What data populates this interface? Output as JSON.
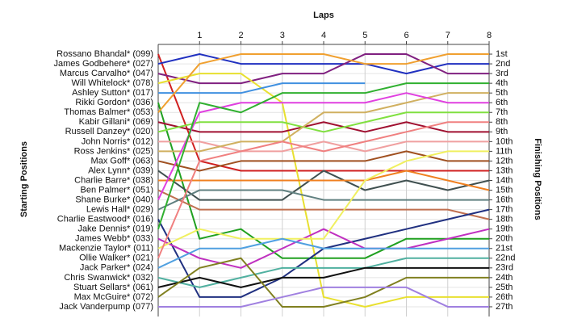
{
  "chart_data": {
    "type": "line",
    "xlabel": "Laps",
    "ylabel": "Starting Positions",
    "y2label": "Finishing Positions",
    "x": [
      0,
      1,
      2,
      3,
      4,
      5,
      6,
      7,
      8
    ],
    "xlim": [
      0,
      8
    ],
    "xticks": [
      1,
      2,
      3,
      4,
      5,
      6,
      7,
      8
    ],
    "ylim": [
      28,
      0
    ],
    "y2lim": [
      28,
      0
    ],
    "y2ticks": [
      {
        "value": 1,
        "label": "1st"
      },
      {
        "value": 2,
        "label": "2nd"
      },
      {
        "value": 3,
        "label": "3rd"
      },
      {
        "value": 4,
        "label": "4th"
      },
      {
        "value": 5,
        "label": "5th"
      },
      {
        "value": 6,
        "label": "6th"
      },
      {
        "value": 7,
        "label": "7th"
      },
      {
        "value": 8,
        "label": "8th"
      },
      {
        "value": 9,
        "label": "9th"
      },
      {
        "value": 10,
        "label": "10th"
      },
      {
        "value": 11,
        "label": "11th"
      },
      {
        "value": 12,
        "label": "12th"
      },
      {
        "value": 13,
        "label": "13th"
      },
      {
        "value": 14,
        "label": "14th"
      },
      {
        "value": 15,
        "label": "15th"
      },
      {
        "value": 16,
        "label": "16th"
      },
      {
        "value": 17,
        "label": "17th"
      },
      {
        "value": 18,
        "label": "18th"
      },
      {
        "value": 19,
        "label": "19th"
      },
      {
        "value": 20,
        "label": "20th"
      },
      {
        "value": 21,
        "label": "21st"
      },
      {
        "value": 22,
        "label": "22nd"
      },
      {
        "value": 23,
        "label": "23rd"
      },
      {
        "value": 24,
        "label": "24th"
      },
      {
        "value": 25,
        "label": "25th"
      },
      {
        "value": 26,
        "label": "26th"
      },
      {
        "value": 27,
        "label": "27th"
      }
    ],
    "grid": true,
    "series": [
      {
        "name": "Rossano Bhandal* (099)",
        "color": "#d02020",
        "values": [
          1,
          12,
          13,
          13,
          13,
          13,
          13,
          13,
          13
        ]
      },
      {
        "name": "James Godbehere* (027)",
        "color": "#2030c0",
        "values": [
          2,
          1,
          2,
          2,
          2,
          2,
          3,
          2,
          2
        ]
      },
      {
        "name": "Marcus Carvalho* (047)",
        "color": "#802080",
        "values": [
          3,
          4,
          4,
          3,
          3,
          1,
          1,
          3,
          3
        ]
      },
      {
        "name": "Will Whitelock* (078)",
        "color": "#e8e030",
        "values": [
          4,
          3,
          3,
          6,
          26,
          27,
          26,
          26,
          26
        ]
      },
      {
        "name": "Ashley Sutton* (017)",
        "color": "#4090e0",
        "values": [
          5,
          5,
          5,
          4,
          4,
          4,
          null,
          null,
          null
        ]
      },
      {
        "name": "Rikki Gordon* (036)",
        "color": "#20a020",
        "values": [
          6,
          20,
          19,
          22,
          22,
          22,
          20,
          20,
          20
        ]
      },
      {
        "name": "Thomas Balmer* (053)",
        "color": "#f0a030",
        "values": [
          7,
          2,
          1,
          1,
          1,
          2,
          2,
          1,
          1
        ]
      },
      {
        "name": "Kabir Gillani* (069)",
        "color": "#a01030",
        "values": [
          8,
          9,
          9,
          9,
          8,
          9,
          8,
          9,
          9
        ]
      },
      {
        "name": "Russell Danzey* (020)",
        "color": "#80e040",
        "values": [
          9,
          8,
          8,
          8,
          9,
          8,
          7,
          7,
          7
        ]
      },
      {
        "name": "John Norris* (012)",
        "color": "#f0a0a0",
        "values": [
          10,
          10,
          11,
          11,
          10,
          11,
          10,
          10,
          10
        ]
      },
      {
        "name": "Ross Jenkins* (025)",
        "color": "#d0b060",
        "values": [
          11,
          11,
          10,
          10,
          7,
          7,
          6,
          5,
          5
        ]
      },
      {
        "name": "Max Goff* (063)",
        "color": "#a05020",
        "values": [
          12,
          13,
          12,
          12,
          12,
          12,
          11,
          12,
          12
        ]
      },
      {
        "name": "Alex Lynn* (039)",
        "color": "#405050",
        "values": [
          13,
          16,
          16,
          16,
          13,
          15,
          14,
          15,
          14
        ]
      },
      {
        "name": "Charlie Barre* (038)",
        "color": "#f08020",
        "values": [
          14,
          14,
          14,
          14,
          14,
          14,
          13,
          14,
          15
        ]
      },
      {
        "name": "Ben Palmer* (051)",
        "color": "#c07050",
        "values": [
          15,
          17,
          17,
          17,
          17,
          17,
          17,
          17,
          18
        ]
      },
      {
        "name": "Shane Burke* (040)",
        "color": "#e040e0",
        "values": [
          16,
          7,
          6,
          6,
          6,
          6,
          5,
          6,
          6
        ]
      },
      {
        "name": "Lewis Hall* (029)",
        "color": "#608080",
        "values": [
          17,
          15,
          15,
          15,
          16,
          16,
          16,
          16,
          16
        ]
      },
      {
        "name": "Charlie Eastwood* (016)",
        "color": "#203080",
        "values": [
          18,
          26,
          26,
          24,
          21,
          20,
          19,
          18,
          17
        ]
      },
      {
        "name": "Jake Dennis* (019)",
        "color": "#30b030",
        "values": [
          19,
          6,
          7,
          5,
          5,
          5,
          4,
          4,
          4
        ]
      },
      {
        "name": "James Webb* (033)",
        "color": "#c030c0",
        "values": [
          20,
          22,
          23,
          21,
          19,
          21,
          21,
          20,
          19
        ]
      },
      {
        "name": "Mackenzie Taylor* (011)",
        "color": "#f0f060",
        "values": [
          21,
          19,
          20,
          20,
          20,
          14,
          12,
          11,
          11
        ]
      },
      {
        "name": "Ollie Walker* (021)",
        "color": "#f08080",
        "values": [
          22,
          12,
          11,
          10,
          11,
          10,
          9,
          8,
          8
        ]
      },
      {
        "name": "Jack Parker* (024)",
        "color": "#50a0e0",
        "values": [
          23,
          21,
          21,
          20,
          21,
          21,
          21,
          21,
          21
        ]
      },
      {
        "name": "Chris Swanwick* (032)",
        "color": "#50b0a0",
        "values": [
          24,
          25,
          24,
          23,
          23,
          23,
          22,
          22,
          22
        ]
      },
      {
        "name": "Stuart Sellars* (061)",
        "color": "#101010",
        "values": [
          25,
          24,
          25,
          24,
          24,
          23,
          23,
          23,
          23
        ]
      },
      {
        "name": "Max McGuire* (072)",
        "color": "#808020",
        "values": [
          26,
          23,
          22,
          27,
          27,
          26,
          24,
          24,
          24
        ]
      },
      {
        "name": "Jack Vanderpump (077)",
        "color": "#a080e0",
        "values": [
          27,
          27,
          27,
          26,
          25,
          25,
          25,
          27,
          27
        ]
      }
    ]
  }
}
